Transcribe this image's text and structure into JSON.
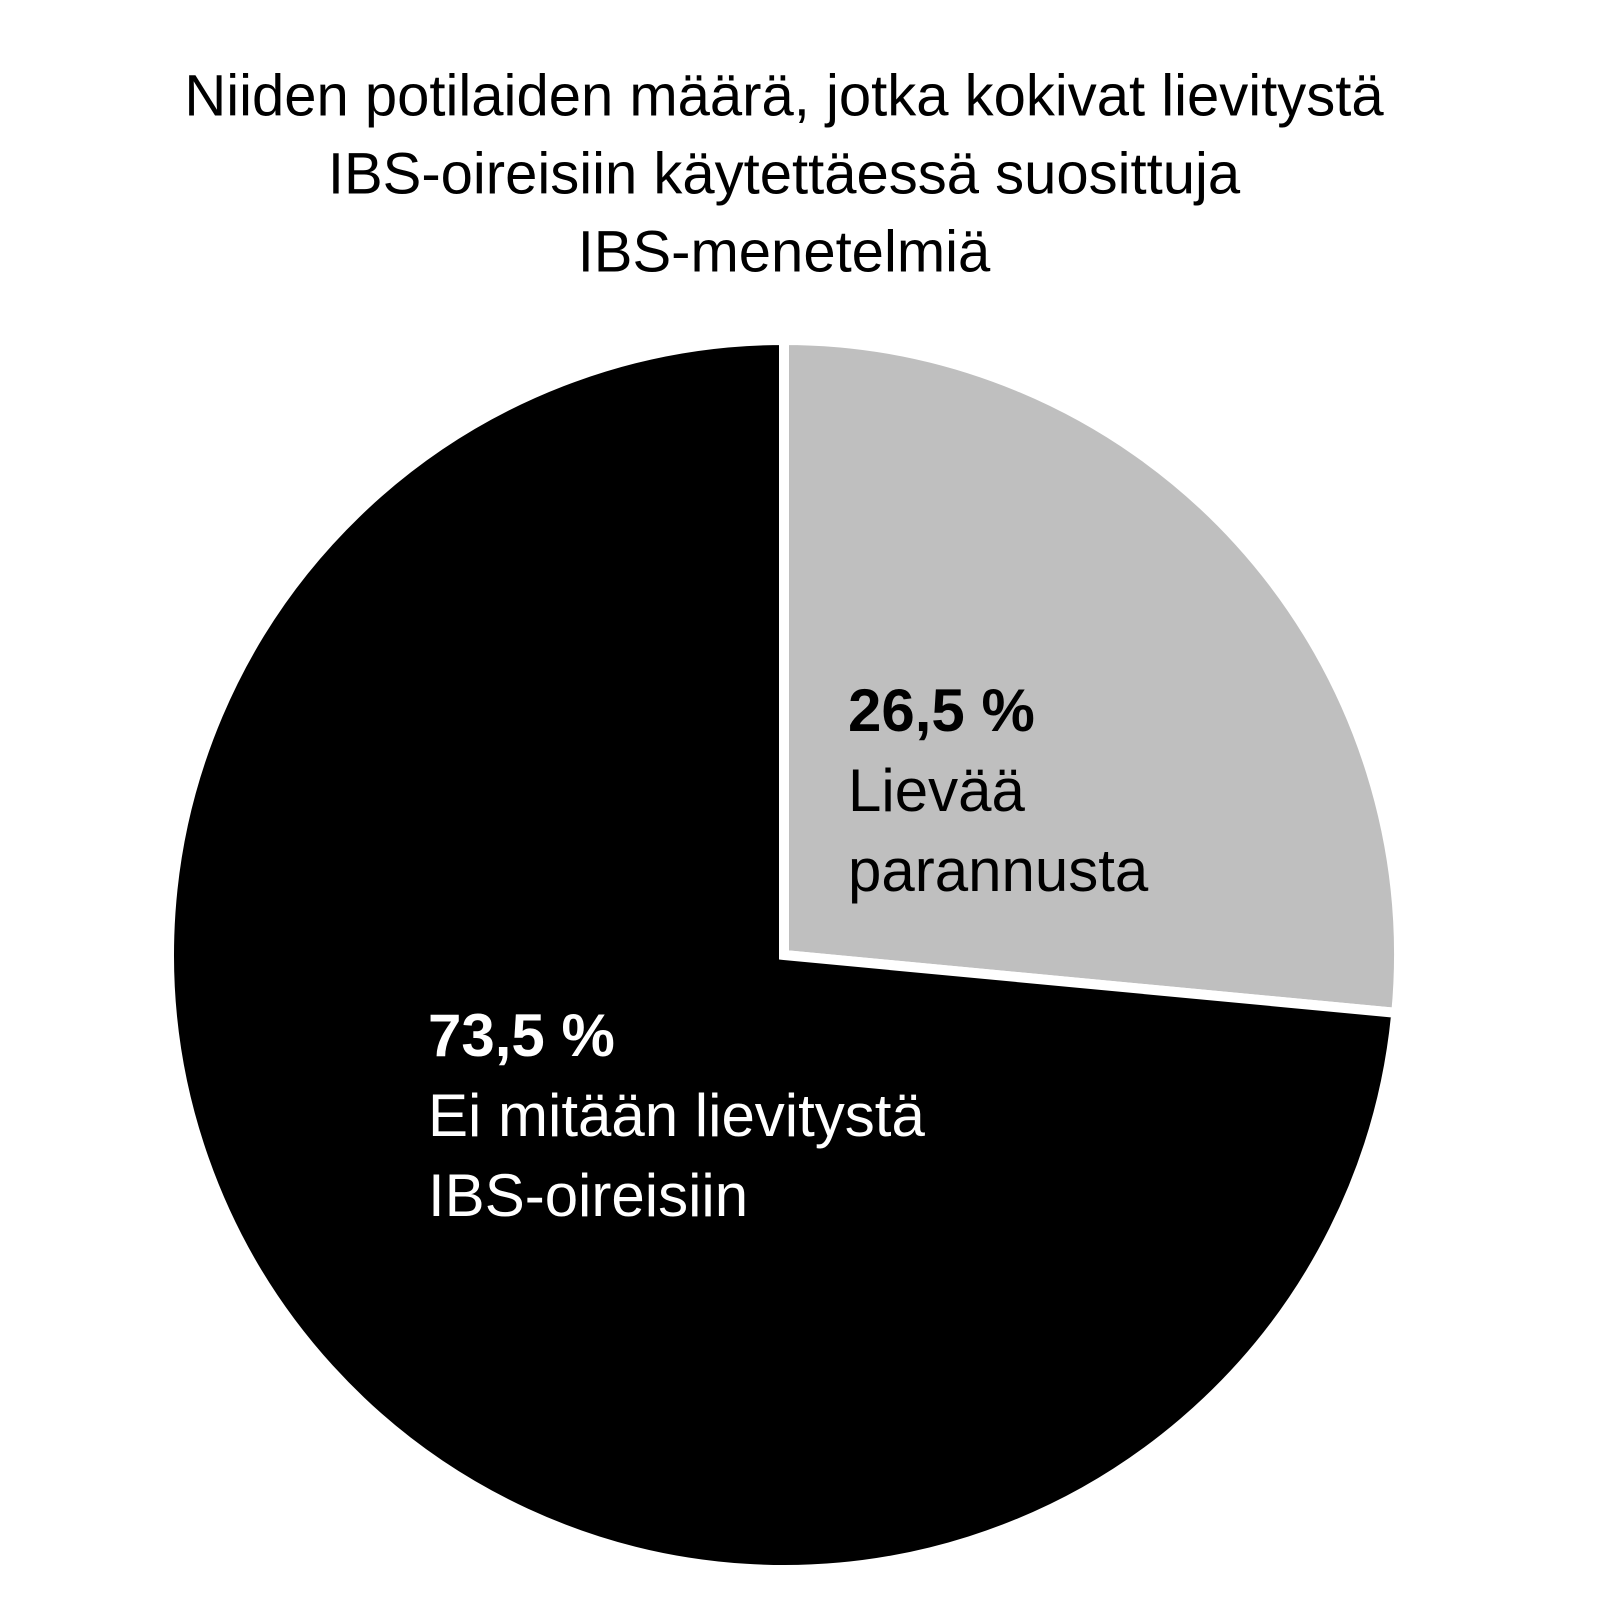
{
  "chart_data": {
    "type": "pie",
    "title": [
      "Niiden potilaiden määrä, jotka kokivat lievitystä",
      "IBS-oireisiin käytettäessä suosittuja",
      "IBS-menetelmiä"
    ],
    "categories": [
      [
        "Lievää",
        "parannusta"
      ],
      [
        "Ei mitään lievitystä",
        "IBS-oireisiin"
      ]
    ],
    "values": [
      26.5,
      73.5
    ],
    "value_labels": [
      "26,5 %",
      "73,5 %"
    ],
    "colors": [
      "#bfbfbf",
      "#000000"
    ]
  }
}
